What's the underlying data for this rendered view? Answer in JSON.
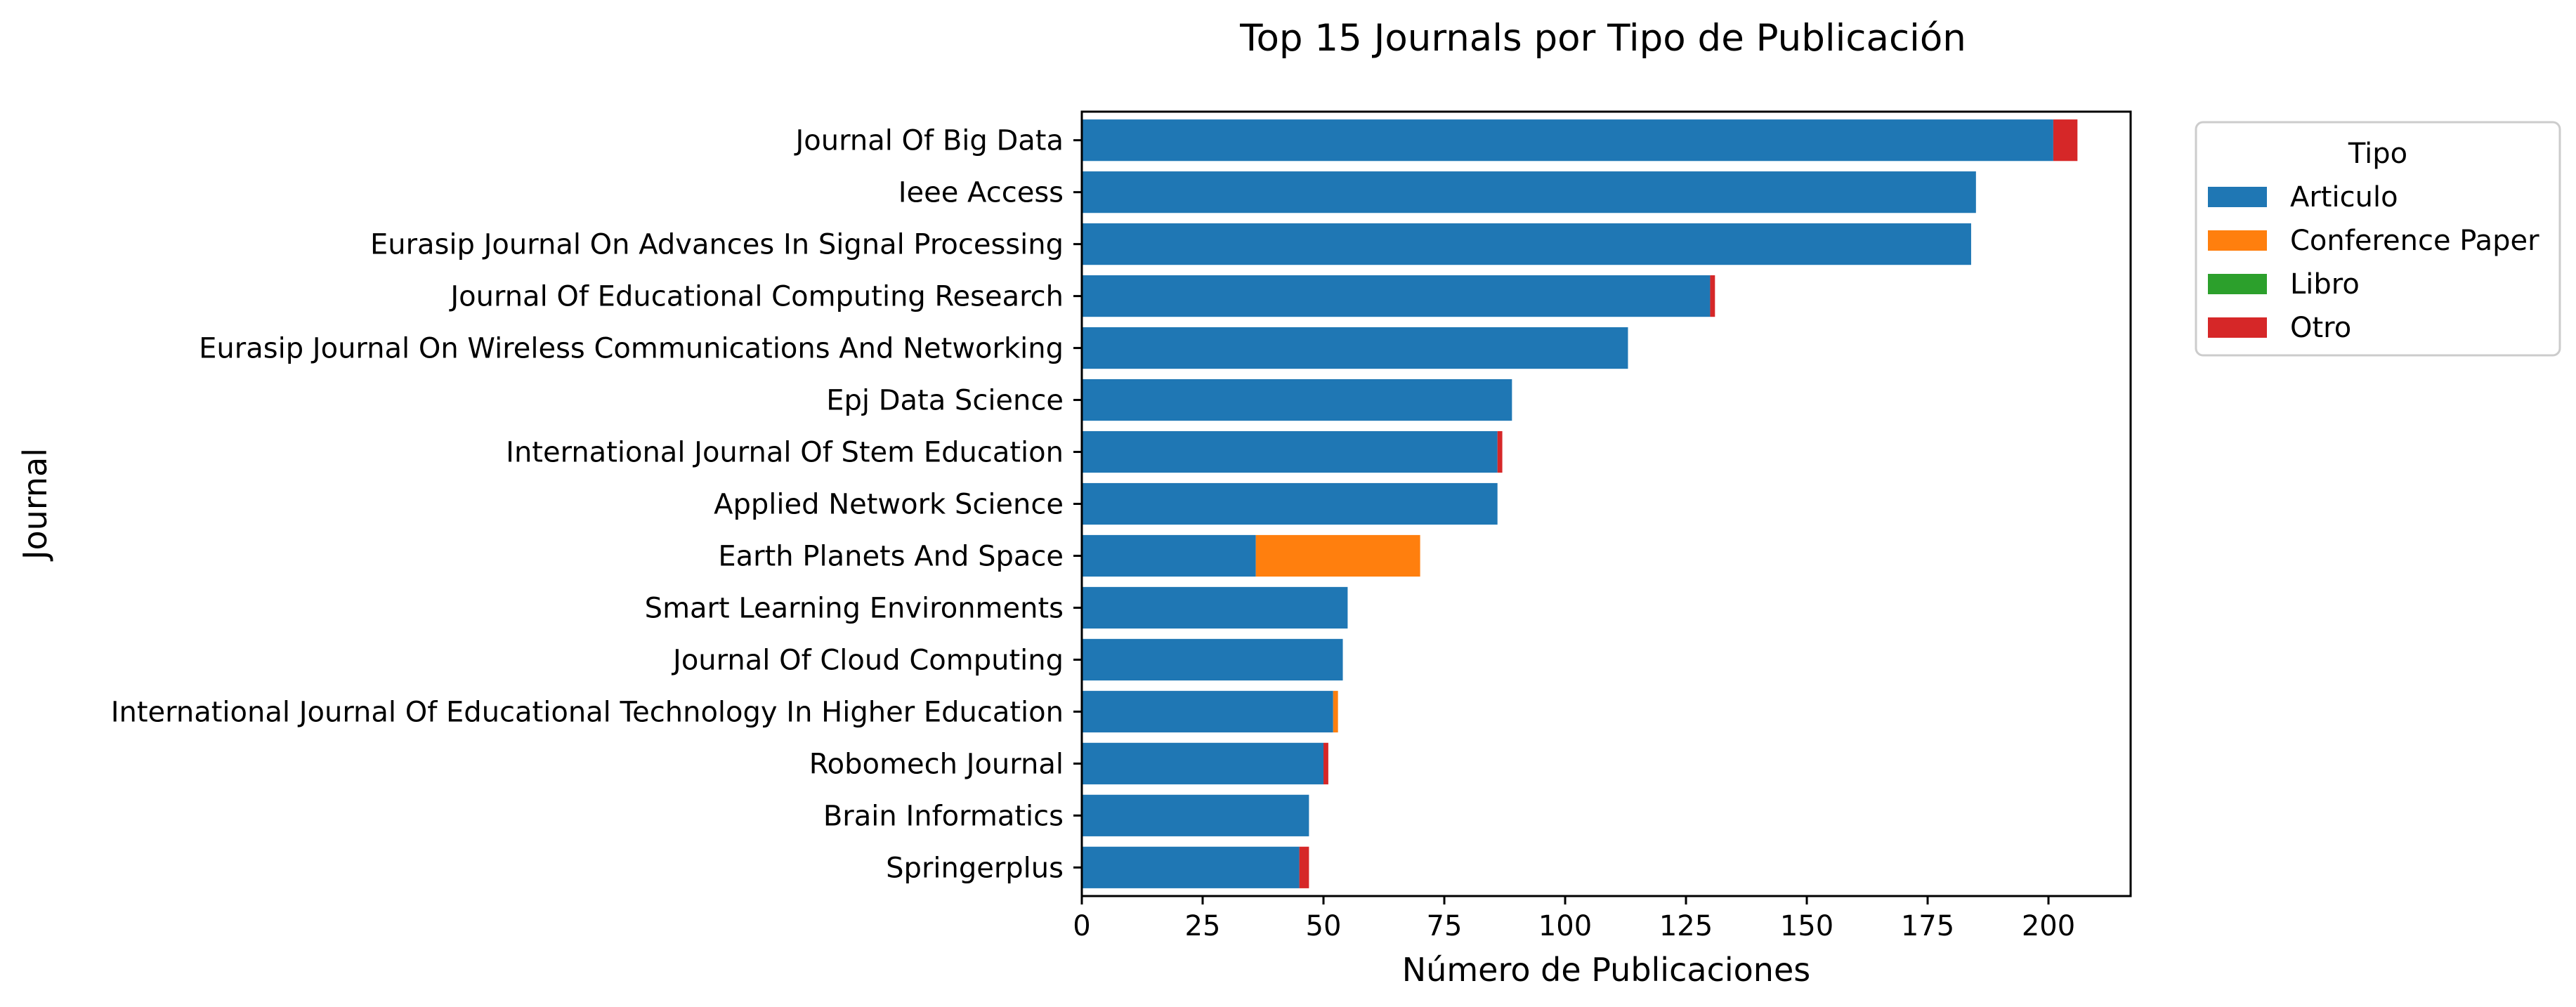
{
  "chart_data": {
    "type": "bar",
    "orientation": "horizontal",
    "stacked": true,
    "title": "Top 15 Journals por Tipo de Publicación",
    "xlabel": "Número de Publicaciones",
    "ylabel": "Journal",
    "xlim": [
      0,
      217
    ],
    "xticks": [
      0,
      25,
      50,
      75,
      100,
      125,
      150,
      175,
      200
    ],
    "grid": false,
    "legend": {
      "title": "Tipo",
      "placement": "outside-top-right"
    },
    "categories": [
      "Journal Of Big Data",
      "Ieee Access",
      "Eurasip Journal On Advances In Signal Processing",
      "Journal Of Educational Computing Research",
      "Eurasip Journal On Wireless Communications And Networking",
      "Epj Data Science",
      "International Journal Of Stem Education",
      "Applied Network Science",
      "Earth Planets And Space",
      "Smart Learning Environments",
      "Journal Of Cloud Computing",
      "International Journal Of Educational Technology In Higher Education",
      "Robomech Journal",
      "Brain Informatics",
      "Springerplus"
    ],
    "series": [
      {
        "name": "Articulo",
        "color": "#1f77b4",
        "values": [
          201,
          185,
          184,
          130,
          113,
          89,
          86,
          86,
          36,
          55,
          54,
          52,
          50,
          47,
          45
        ]
      },
      {
        "name": "Conference Paper",
        "color": "#ff7f0e",
        "values": [
          0,
          0,
          0,
          0,
          0,
          0,
          0,
          0,
          34,
          0,
          0,
          1,
          0,
          0,
          0
        ]
      },
      {
        "name": "Libro",
        "color": "#2ca02c",
        "values": [
          0,
          0,
          0,
          0,
          0,
          0,
          0,
          0,
          0,
          0,
          0,
          0,
          0,
          0,
          0
        ]
      },
      {
        "name": "Otro",
        "color": "#d62728",
        "values": [
          5,
          0,
          0,
          1,
          0,
          0,
          1,
          0,
          0,
          0,
          0,
          0,
          1,
          0,
          2
        ]
      }
    ]
  }
}
